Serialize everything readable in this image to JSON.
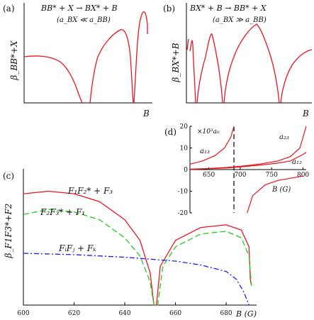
{
  "figure": {
    "panel_a": {
      "label": "(a)",
      "reaction": "BB* + X → BX* + B",
      "condition": "(a_BX ≪ a_BB)",
      "ylabel": "β_BB*+X",
      "xlabel": "B"
    },
    "panel_b": {
      "label": "(b)",
      "reaction": "BX* + B → BB* + X",
      "condition": "(a_BX ≫ a_BB)",
      "ylabel": "β_BX*+B",
      "xlabel": "B"
    },
    "panel_d": {
      "label": "(d)",
      "unit_label": "×10³a₀",
      "xlabel": "B (G)",
      "curve_labels": {
        "a13": "a₁₃",
        "a23": "a₂₃",
        "a12": "a₁₂"
      },
      "x_ticks": [
        "650",
        "700",
        "750",
        "800"
      ],
      "y_ticks": [
        "20",
        "10",
        "0",
        "-10",
        "-20"
      ]
    },
    "panel_c": {
      "label": "(c)",
      "ylabel": "β_F1F3*+F2",
      "xlabel": "B (G)",
      "curve_labels": {
        "red": "F₁F₂* + F₃",
        "green": "F₂F₃* + F₁",
        "blue": "FᵢFⱼ + Fₖ"
      },
      "x_ticks": [
        "600",
        "620",
        "640",
        "660",
        "680"
      ]
    }
  },
  "colors": {
    "red": "#e8141e",
    "green": "#22cc22",
    "blue": "#1a1aff",
    "axis": "#000000"
  },
  "chart_data": [
    {
      "type": "line",
      "panel": "d",
      "xlabel": "B (G)",
      "xlim": [
        620,
        805
      ],
      "ylim": [
        -20,
        20
      ],
      "series": [
        {
          "name": "a₁₃",
          "x": [
            620,
            640,
            660,
            675,
            685,
            690
          ],
          "y": [
            2.5,
            4,
            6.5,
            10,
            15,
            20
          ]
        },
        {
          "name": "a₁₃",
          "x": [
            711,
            720,
            740,
            760,
            780,
            800
          ],
          "y": [
            -20,
            -12,
            -7,
            -5,
            -4,
            -3
          ]
        },
        {
          "name": "a₂₃",
          "x": [
            620,
            650,
            680,
            700,
            730,
            760,
            780,
            795,
            805
          ],
          "y": [
            0.2,
            0.5,
            1,
            1.5,
            2.5,
            4,
            6,
            10,
            20
          ]
        },
        {
          "name": "a₁₂",
          "x": [
            620,
            650,
            680,
            700,
            730,
            760,
            780,
            800,
            805
          ],
          "y": [
            0.1,
            0.4,
            0.8,
            1.2,
            2,
            3,
            4,
            7,
            8
          ]
        }
      ],
      "annotations": [
        {
          "type": "vline",
          "x": 690,
          "style": "dashed"
        }
      ]
    },
    {
      "type": "line",
      "panel": "c",
      "xlabel": "B (G)",
      "xlim": [
        600,
        692
      ],
      "series": [
        {
          "name": "F₁F₂* + F₃",
          "x": [
            600,
            610,
            620,
            630,
            640,
            646,
            650,
            651.5,
            652.5,
            654,
            660,
            670,
            680,
            686,
            689,
            689.5,
            690
          ],
          "y": [
            0.86,
            0.88,
            0.86,
            0.8,
            0.66,
            0.5,
            0.25,
            0,
            0,
            0.3,
            0.5,
            0.6,
            0.62,
            0.58,
            0.45,
            0.2,
            0.15
          ]
        },
        {
          "name": "F₂F₃* + F₁",
          "x": [
            600,
            610,
            620,
            630,
            640,
            646,
            650,
            651.5,
            653,
            655,
            660,
            670,
            680,
            686,
            689,
            690
          ],
          "y": [
            0.7,
            0.74,
            0.72,
            0.66,
            0.52,
            0.38,
            0.18,
            0,
            0,
            0.3,
            0.45,
            0.55,
            0.57,
            0.52,
            0.38,
            0.15
          ]
        },
        {
          "name": "FᵢFⱼ + Fₖ",
          "x": [
            600,
            620,
            640,
            660,
            670,
            680,
            684,
            687,
            689
          ],
          "y": [
            0.4,
            0.39,
            0.37,
            0.34,
            0.31,
            0.26,
            0.2,
            0.1,
            0
          ]
        }
      ]
    }
  ]
}
